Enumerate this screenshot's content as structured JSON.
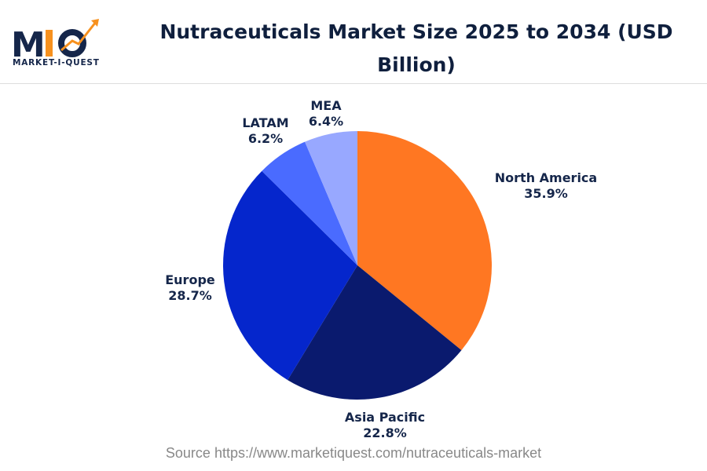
{
  "logo": {
    "text": "MARKET-I-QUEST",
    "mark": "MIQ"
  },
  "title": "Nutraceuticals Market Size 2025 to 2034 (USD Billion)",
  "source": "Source https://www.marketiquest.com/nutraceuticals-market",
  "chart_data": {
    "type": "pie",
    "title": "Nutraceuticals Market Size 2025 to 2034 (USD Billion)",
    "categories": [
      "North America",
      "Asia Pacific",
      "Europe",
      "LATAM",
      "MEA"
    ],
    "values": [
      35.9,
      22.8,
      28.7,
      6.2,
      6.4
    ],
    "labels": [
      "35.9%",
      "22.8%",
      "28.7%",
      "6.2%",
      "6.4%"
    ],
    "colors": [
      "#FF7722",
      "#0A1A6E",
      "#0526CC",
      "#4A6BFF",
      "#98A8FF"
    ],
    "start": "top",
    "direction": "clockwise"
  }
}
